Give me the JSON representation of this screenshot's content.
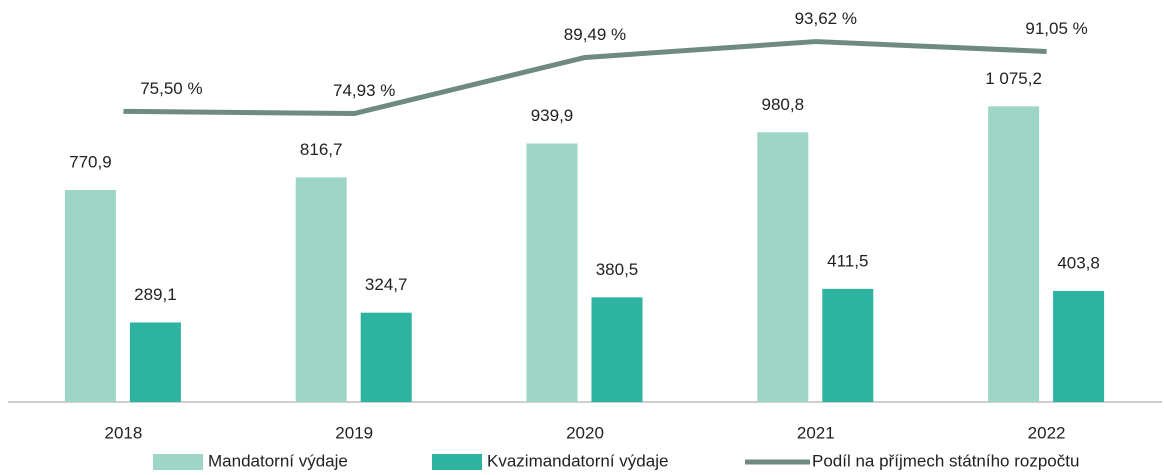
{
  "chart_data": {
    "type": "bar_line",
    "categories": [
      "2018",
      "2019",
      "2020",
      "2021",
      "2022"
    ],
    "series": [
      {
        "name": "Mandatorní výdaje",
        "type": "bar",
        "color": "#9dd5c6",
        "values": [
          770.9,
          816.7,
          939.9,
          980.8,
          1075.2
        ],
        "value_labels": [
          "770,9",
          "816,7",
          "939,9",
          "980,8",
          "1 075,2"
        ]
      },
      {
        "name": "Kvazimandatorní výdaje",
        "type": "bar",
        "color": "#2db3a0",
        "values": [
          289.1,
          324.7,
          380.5,
          411.5,
          403.8
        ],
        "value_labels": [
          "289,1",
          "324,7",
          "380,5",
          "411,5",
          "403,8"
        ]
      },
      {
        "name": "Podíl na příjmech státního rozpočtu",
        "type": "line",
        "color": "#6f8a82",
        "axis": "y2",
        "values": [
          75.5,
          74.93,
          89.49,
          93.62,
          91.05
        ],
        "value_labels": [
          "75,50 %",
          "74,93 %",
          "89,49 %",
          "93,62 %",
          "91,05 %"
        ]
      }
    ],
    "ylim": [
      0,
      1400
    ],
    "y2lim": [
      0,
      100
    ],
    "legend": "bottom"
  }
}
